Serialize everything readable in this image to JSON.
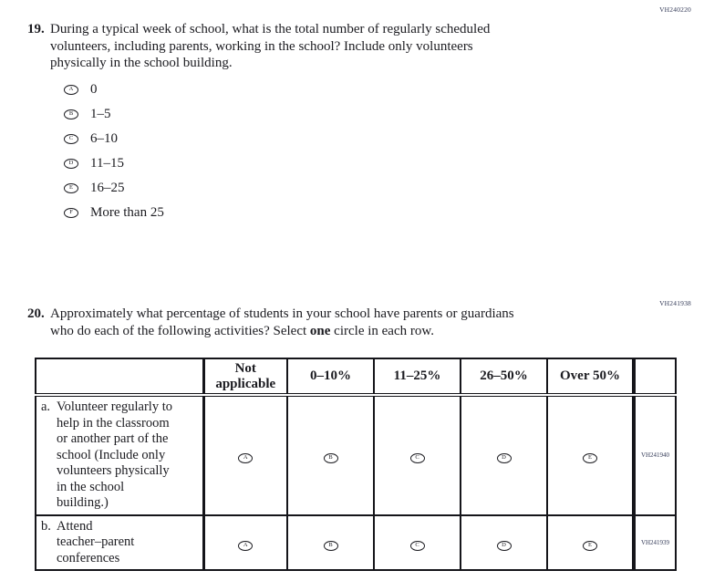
{
  "page": {
    "background": "#ffffff",
    "text_color": "#1b1b20",
    "code_color": "#333a57",
    "border_color": "#15151a"
  },
  "q19": {
    "code": "VH240220",
    "number": "19.",
    "lines": [
      "During a typical week of school, what is the total number of regularly scheduled",
      "volunteers, including parents, working in the school? Include only volunteers",
      "physically in the school building."
    ],
    "options": [
      {
        "letter": "A",
        "label": "0"
      },
      {
        "letter": "B",
        "label": "1–5"
      },
      {
        "letter": "C",
        "label": "6–10"
      },
      {
        "letter": "D",
        "label": "11–15"
      },
      {
        "letter": "E",
        "label": "16–25"
      },
      {
        "letter": "F",
        "label": "More than 25"
      }
    ]
  },
  "q20": {
    "code": "VH241938",
    "number": "20.",
    "line1": "Approximately what percentage of students in your school have parents or guardians",
    "line2_pre": "who do each of the following activities? Select ",
    "line2_bold": "one",
    "line2_post": " circle in each row.",
    "table": {
      "col_headers": [
        [
          "Not",
          "applicable"
        ],
        [
          "0–10%"
        ],
        [
          "11–25%"
        ],
        [
          "26–50%"
        ],
        [
          "Over 50%"
        ]
      ],
      "rows": [
        {
          "letter": "a.",
          "label_lines": [
            "Volunteer regularly to",
            "help in the classroom",
            "or another part of the",
            "school (Include only",
            "volunteers physically",
            "in the school",
            "building.)"
          ],
          "bubbles": [
            "A",
            "B",
            "C",
            "D",
            "E"
          ],
          "code": "VH241940"
        },
        {
          "letter": "b.",
          "label_lines": [
            "Attend",
            "teacher–parent",
            "conferences"
          ],
          "bubbles": [
            "A",
            "B",
            "C",
            "D",
            "E"
          ],
          "code": "VH241939"
        }
      ]
    }
  }
}
